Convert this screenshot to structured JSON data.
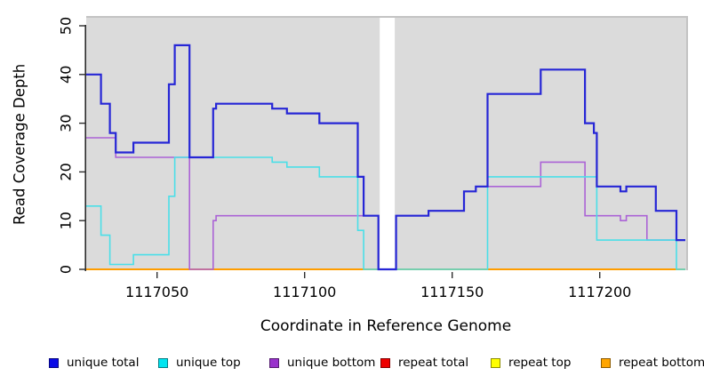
{
  "axes": {
    "y": {
      "title": "Read Coverage Depth",
      "ticks": [
        "0",
        "10",
        "20",
        "30",
        "40",
        "50"
      ]
    },
    "x": {
      "title": "Coordinate in Reference Genome",
      "ticks": [
        "1117050",
        "1117100",
        "1117150",
        "1117200"
      ]
    }
  },
  "chart_data": {
    "type": "line",
    "subtype": "step",
    "title": "",
    "xlabel": "Coordinate in Reference Genome",
    "ylabel": "Read Coverage Depth",
    "xlim": [
      1117026,
      1117229
    ],
    "ylim": [
      0,
      50
    ],
    "x_ticks": [
      1117050,
      1117100,
      1117150,
      1117200
    ],
    "y_ticks": [
      0,
      10,
      20,
      30,
      40,
      50
    ],
    "grid": false,
    "plot_background": "#DBDBDB",
    "gap_region": {
      "x_start": 1117125,
      "x_end": 1117131,
      "note": "white vertical band with no coverage data"
    },
    "x_end": 1117229,
    "legend_position": "bottom",
    "series": [
      {
        "name": "unique total",
        "color": "#2626D6",
        "legend_color": "#0B0BE6",
        "width": 2.2,
        "steps": [
          [
            1117026,
            40
          ],
          [
            1117031,
            34
          ],
          [
            1117034,
            28
          ],
          [
            1117036,
            24
          ],
          [
            1117042,
            26
          ],
          [
            1117054,
            38
          ],
          [
            1117056,
            46
          ],
          [
            1117061,
            23
          ],
          [
            1117069,
            33
          ],
          [
            1117070,
            34
          ],
          [
            1117089,
            33
          ],
          [
            1117094,
            32
          ],
          [
            1117105,
            30
          ],
          [
            1117118,
            19
          ],
          [
            1117120,
            11
          ],
          [
            1117125,
            0
          ],
          [
            1117131,
            11
          ],
          [
            1117142,
            12
          ],
          [
            1117154,
            16
          ],
          [
            1117158,
            17
          ],
          [
            1117162,
            36
          ],
          [
            1117180,
            41
          ],
          [
            1117195,
            30
          ],
          [
            1117198,
            28
          ],
          [
            1117199,
            17
          ],
          [
            1117207,
            16
          ],
          [
            1117209,
            17
          ],
          [
            1117219,
            12
          ],
          [
            1117226,
            6
          ]
        ]
      },
      {
        "name": "unique top",
        "color": "#4ADFE8",
        "legend_color": "#00E5F0",
        "width": 1.6,
        "steps": [
          [
            1117026,
            13
          ],
          [
            1117031,
            7
          ],
          [
            1117034,
            1
          ],
          [
            1117042,
            3
          ],
          [
            1117054,
            15
          ],
          [
            1117056,
            23
          ],
          [
            1117089,
            22
          ],
          [
            1117094,
            21
          ],
          [
            1117105,
            19
          ],
          [
            1117118,
            8
          ],
          [
            1117120,
            0
          ],
          [
            1117162,
            19
          ],
          [
            1117199,
            6
          ],
          [
            1117226,
            0
          ]
        ]
      },
      {
        "name": "unique bottom",
        "color": "#AB63D6",
        "legend_color": "#9932CC",
        "width": 1.6,
        "steps": [
          [
            1117026,
            27
          ],
          [
            1117036,
            23
          ],
          [
            1117061,
            0
          ],
          [
            1117069,
            10
          ],
          [
            1117070,
            11
          ],
          [
            1117125,
            0
          ],
          [
            1117131,
            11
          ],
          [
            1117142,
            12
          ],
          [
            1117154,
            16
          ],
          [
            1117158,
            17
          ],
          [
            1117180,
            22
          ],
          [
            1117195,
            11
          ],
          [
            1117207,
            10
          ],
          [
            1117209,
            11
          ],
          [
            1117216,
            6
          ]
        ]
      },
      {
        "name": "repeat total",
        "color": "#E00000",
        "legend_color": "#EE0000",
        "width": 1.6,
        "steps": [
          [
            1117026,
            0
          ]
        ]
      },
      {
        "name": "repeat top",
        "color": "#FFFF00",
        "legend_color": "#FFFF00",
        "width": 1.6,
        "steps": [
          [
            1117026,
            0
          ]
        ]
      },
      {
        "name": "repeat bottom",
        "color": "#FF9D00",
        "legend_color": "#FFA500",
        "width": 2,
        "steps": [
          [
            1117026,
            0
          ]
        ]
      }
    ]
  },
  "legend": {
    "items": [
      {
        "label": "unique total"
      },
      {
        "label": "unique top"
      },
      {
        "label": "unique bottom"
      },
      {
        "label": "repeat total"
      },
      {
        "label": "repeat top"
      },
      {
        "label": "repeat bottom"
      }
    ]
  }
}
